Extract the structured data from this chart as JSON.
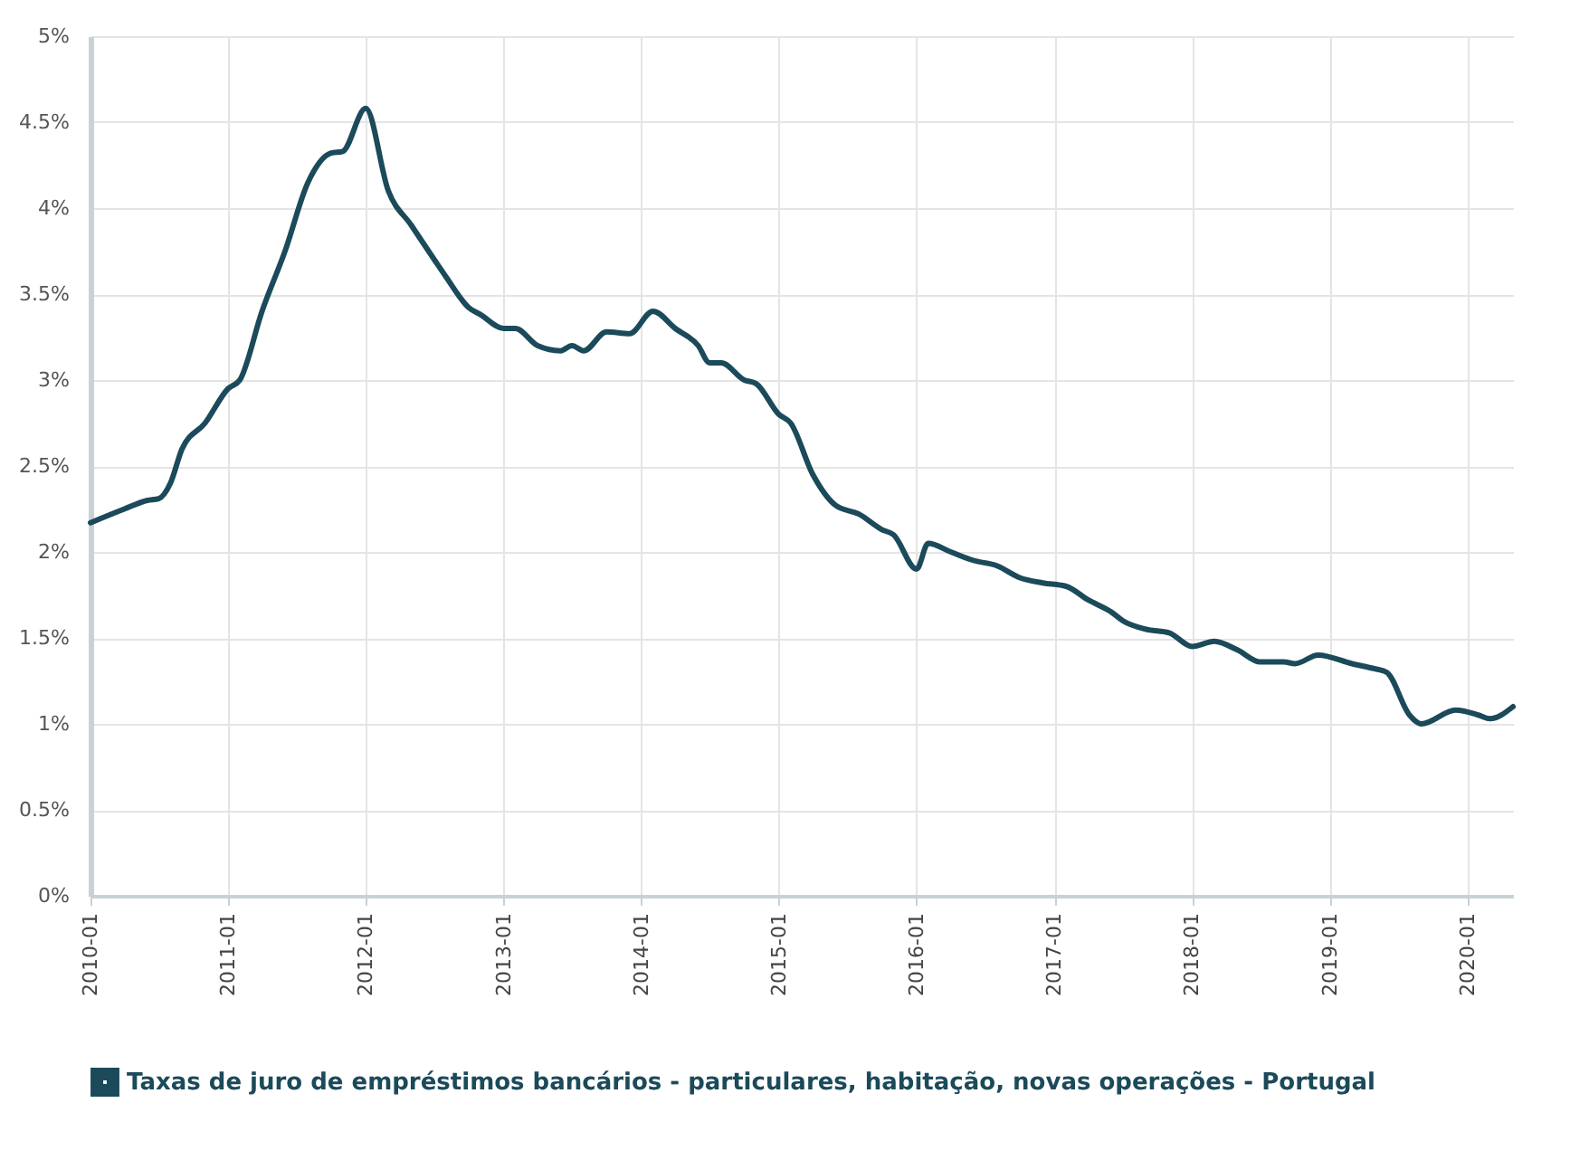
{
  "chart_data": {
    "type": "line",
    "x": [
      "2010-01",
      "2010-04",
      "2010-06",
      "2010-07",
      "2010-08",
      "2010-09",
      "2010-11",
      "2011-01",
      "2011-02",
      "2011-04",
      "2011-06",
      "2011-08",
      "2011-10",
      "2011-11",
      "2012-01",
      "2012-03",
      "2012-05",
      "2012-07",
      "2012-08",
      "2012-10",
      "2012-11",
      "2013-01",
      "2013-02",
      "2013-04",
      "2013-06",
      "2013-07",
      "2013-08",
      "2013-10",
      "2013-12",
      "2014-02",
      "2014-04",
      "2014-06",
      "2014-07",
      "2014-08",
      "2014-10",
      "2014-11",
      "2015-01",
      "2015-02",
      "2015-04",
      "2015-06",
      "2015-08",
      "2015-10",
      "2015-11",
      "2016-01",
      "2016-02",
      "2016-04",
      "2016-06",
      "2016-08",
      "2016-10",
      "2016-12",
      "2017-02",
      "2017-04",
      "2017-06",
      "2017-07",
      "2017-09",
      "2017-11",
      "2018-01",
      "2018-03",
      "2018-05",
      "2018-07",
      "2018-09",
      "2018-10",
      "2018-12",
      "2019-03",
      "2019-05",
      "2019-06",
      "2019-08",
      "2019-09",
      "2019-12",
      "2020-02",
      "2020-03",
      "2020-05"
    ],
    "series": [
      {
        "name": "Taxas de juro de empréstimos bancários - particulares, habitação, novas operações - Portugal",
        "color": "#1b4a5a",
        "values": [
          2.17,
          2.25,
          2.3,
          2.31,
          2.4,
          2.6,
          2.75,
          2.95,
          3.0,
          3.4,
          3.75,
          4.15,
          4.32,
          4.33,
          4.58,
          4.1,
          3.9,
          3.7,
          3.6,
          3.42,
          3.38,
          3.3,
          3.3,
          3.2,
          3.17,
          3.2,
          3.17,
          3.28,
          3.27,
          3.4,
          3.3,
          3.2,
          3.1,
          3.1,
          3.0,
          2.98,
          2.8,
          2.75,
          2.45,
          2.27,
          2.22,
          2.13,
          2.1,
          1.9,
          2.05,
          2.0,
          1.95,
          1.92,
          1.85,
          1.82,
          1.8,
          1.72,
          1.65,
          1.6,
          1.55,
          1.53,
          1.45,
          1.48,
          1.43,
          1.36,
          1.36,
          1.35,
          1.4,
          1.35,
          1.32,
          1.3,
          1.05,
          1.0,
          1.08,
          1.05,
          1.03,
          1.1
        ]
      }
    ],
    "xlim": [
      "2010-01",
      "2020-05"
    ],
    "xticks": [
      "2010-01",
      "2011-01",
      "2012-01",
      "2013-01",
      "2014-01",
      "2015-01",
      "2016-01",
      "2017-01",
      "2018-01",
      "2019-01",
      "2020-01"
    ],
    "ylim": [
      0,
      5
    ],
    "yticks": [
      {
        "value": 0,
        "label": "0%"
      },
      {
        "value": 0.5,
        "label": "0.5%"
      },
      {
        "value": 1,
        "label": "1%"
      },
      {
        "value": 1.5,
        "label": "1.5%"
      },
      {
        "value": 2,
        "label": "2%"
      },
      {
        "value": 2.5,
        "label": "2.5%"
      },
      {
        "value": 3,
        "label": "3%"
      },
      {
        "value": 3.5,
        "label": "3.5%"
      },
      {
        "value": 4,
        "label": "4%"
      },
      {
        "value": 4.5,
        "label": "4.5%"
      },
      {
        "value": 5,
        "label": "5%"
      }
    ],
    "grid": true,
    "legend": "bottom",
    "marker": "none",
    "line_style": "solid"
  }
}
